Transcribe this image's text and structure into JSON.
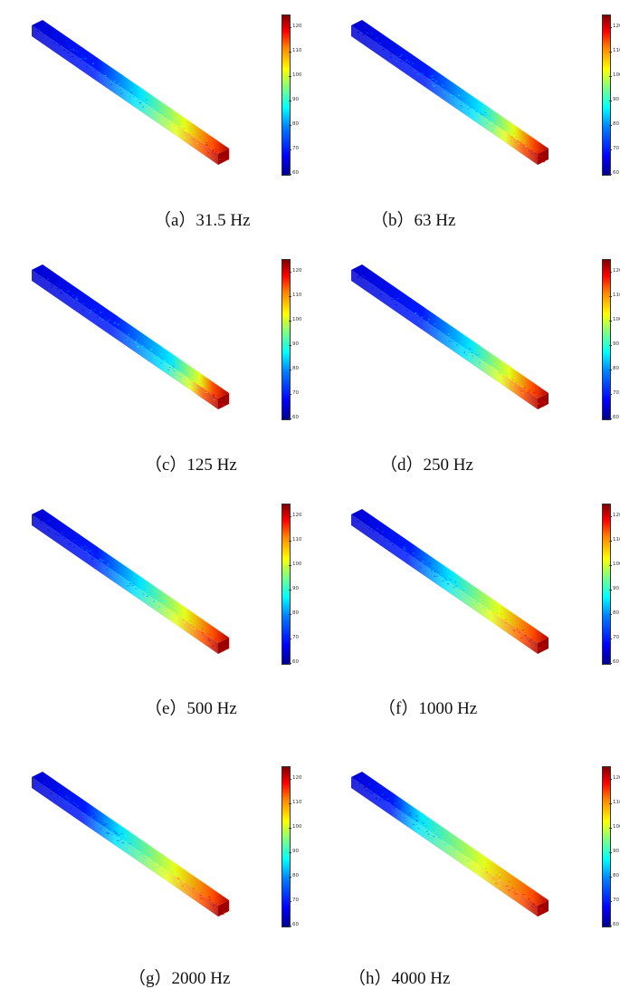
{
  "colorbar": {
    "ticks": [
      "60",
      "70",
      "80",
      "90",
      "100",
      "110",
      "120"
    ],
    "min": 60,
    "max": 125,
    "colormap": "jet"
  },
  "panels": [
    {
      "label": "（a）31.5 Hz"
    },
    {
      "label": "（b）63 Hz"
    },
    {
      "label": "（c）125 Hz"
    },
    {
      "label": "（d）250 Hz"
    },
    {
      "label": "（e）500 Hz"
    },
    {
      "label": "（f）1000 Hz"
    },
    {
      "label": "（g）2000 Hz"
    },
    {
      "label": "（h）4000 Hz"
    }
  ]
}
